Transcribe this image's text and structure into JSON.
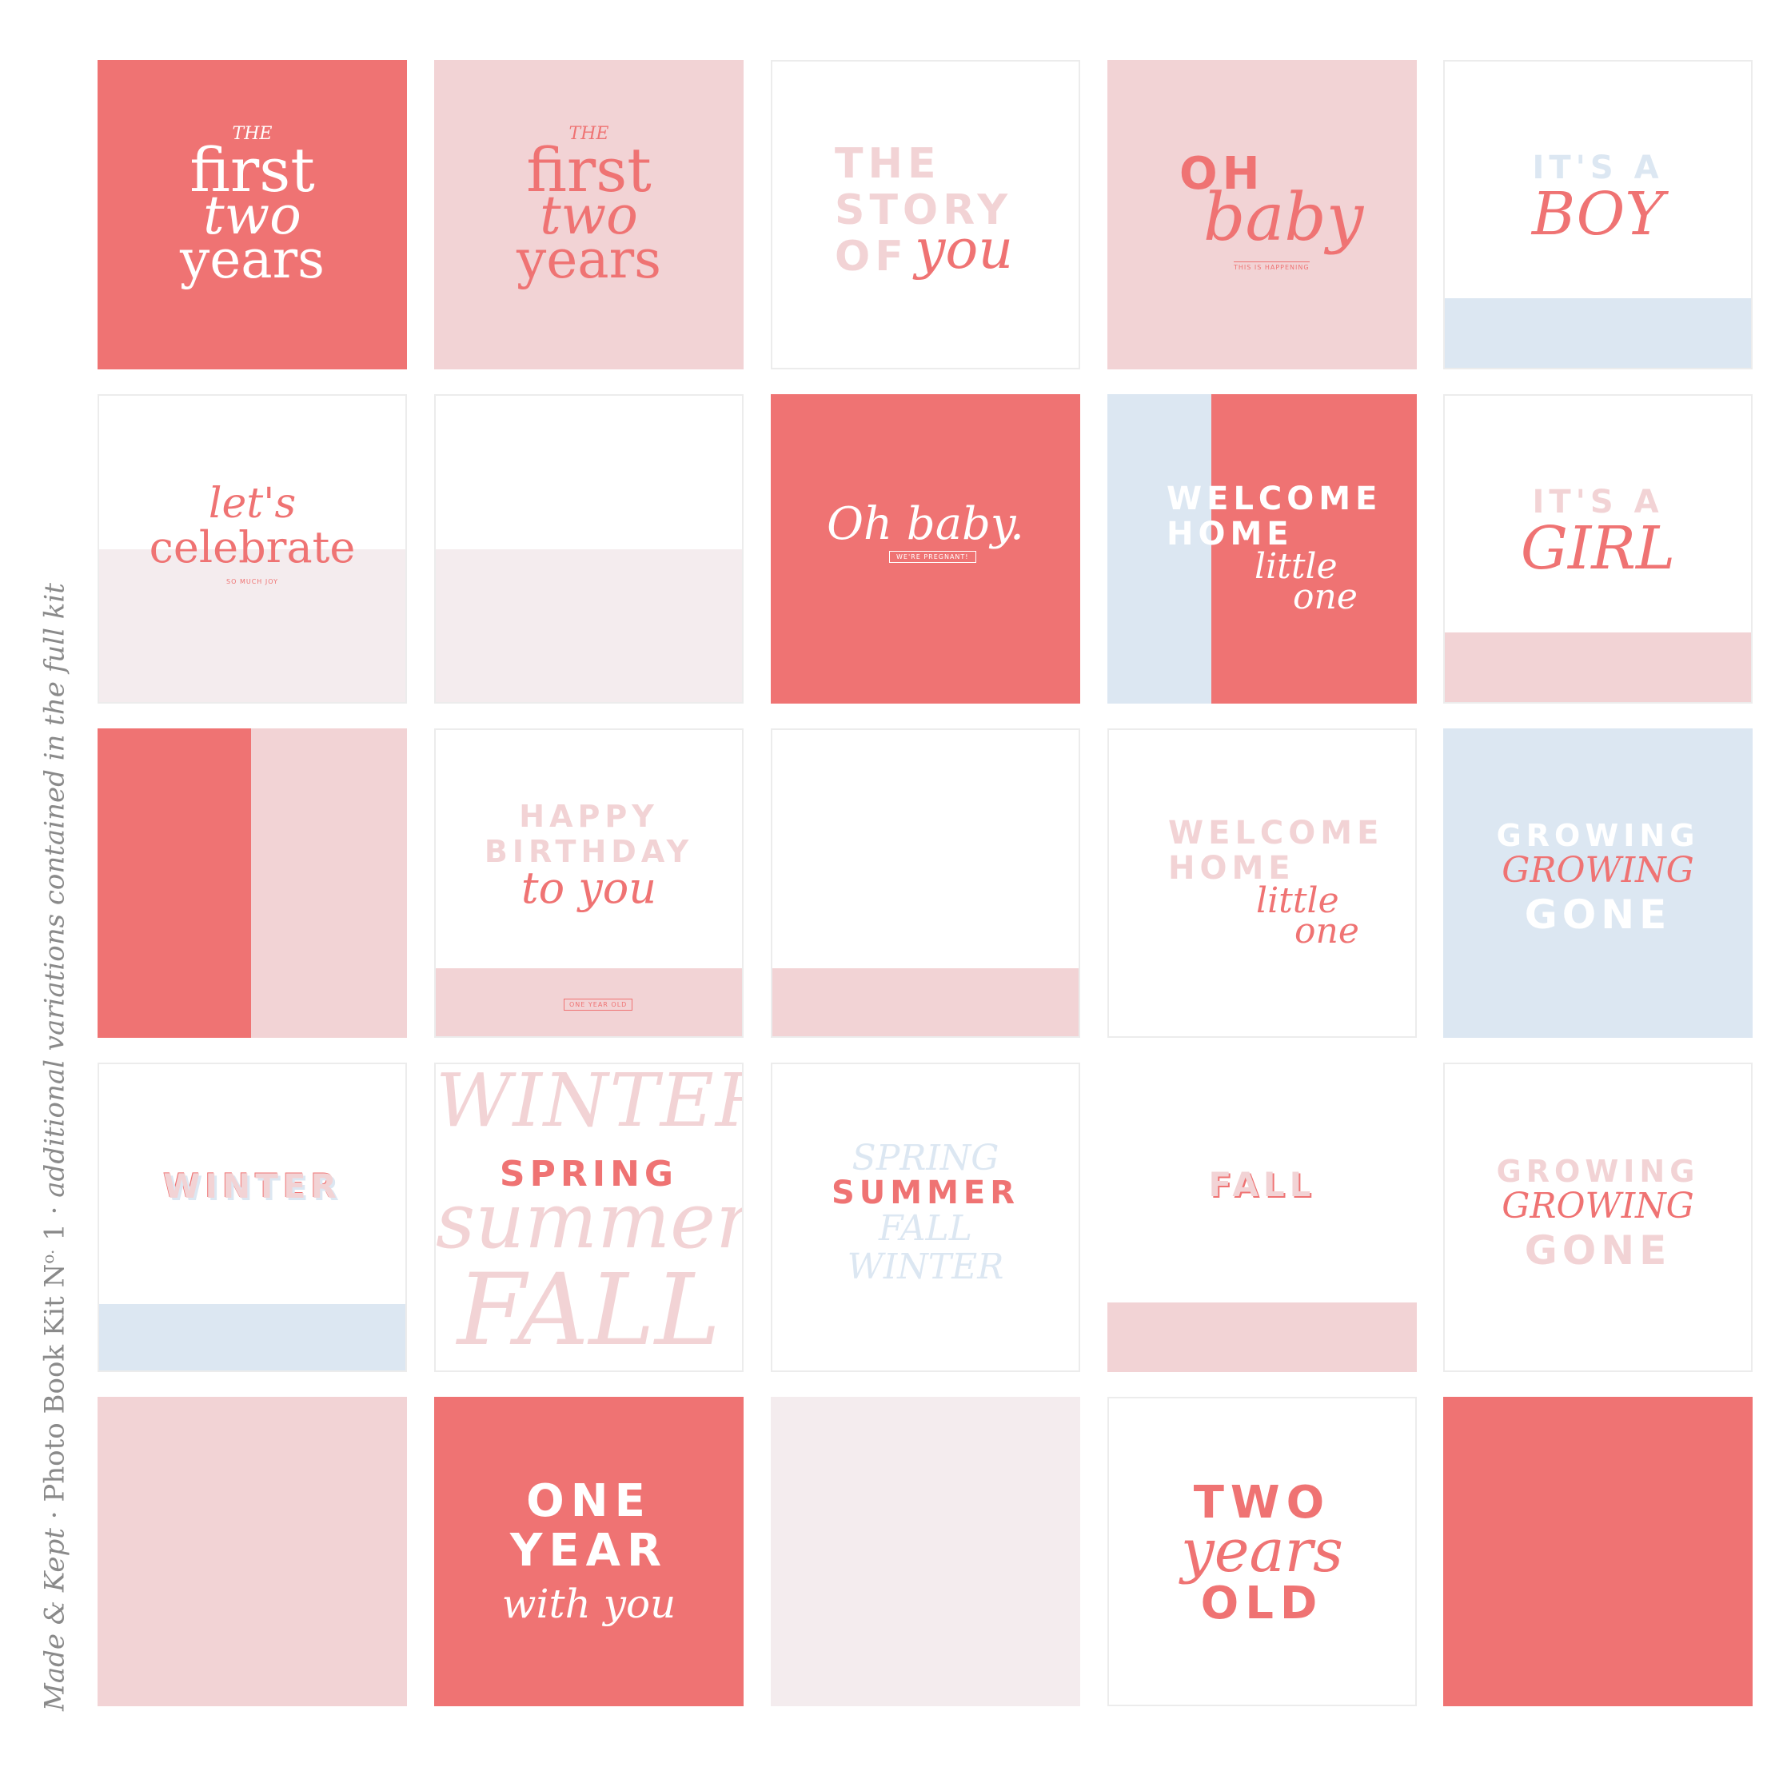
{
  "side_caption": {
    "brand": "Made & Kept",
    "sep1": " · ",
    "product": "Photo Book Kit N",
    "sup": "o.",
    "num": " 1",
    "sep2": " · ",
    "note": "additional variations contained in the full kit"
  },
  "colors": {
    "coral": "#ef7373",
    "pink": "#f2d3d5",
    "blue": "#dce7f2",
    "light": "#f4ecee",
    "white": "#ffffff"
  },
  "cards": {
    "c1": {
      "l1": "THE",
      "l2": "first",
      "l3": "two",
      "l4": "years"
    },
    "c2": {
      "l1": "THE",
      "l2": "first",
      "l3": "two",
      "l4": "years"
    },
    "c3": {
      "l1": "THE",
      "l2": "STORY",
      "l3": "OF",
      "l4": "you"
    },
    "c4": {
      "l1": "OH",
      "l2": "baby",
      "l3": "THIS IS HAPPENING"
    },
    "c5": {
      "l1": "IT'S A",
      "l2": "BOY"
    },
    "c6": {
      "l1": "let's",
      "l2": "celebrate",
      "l3": "SO MUCH JOY"
    },
    "c8": {
      "l1": "Oh baby.",
      "l2": "WE'RE PREGNANT!"
    },
    "c9": {
      "l1": "WELCOME",
      "l2": "HOME",
      "l3": "little",
      "l4": "one"
    },
    "c10": {
      "l1": "IT'S A",
      "l2": "GIRL"
    },
    "c12": {
      "l1": "HAPPY",
      "l2": "BIRTHDAY",
      "l3": "to you",
      "l4": "ONE YEAR OLD"
    },
    "c14": {
      "l1": "WELCOME",
      "l2": "HOME",
      "l3": "little",
      "l4": "one"
    },
    "c15": {
      "l1": "GROWING",
      "l2": "GROWING",
      "l3": "GONE"
    },
    "c16": {
      "l1": "WINTER"
    },
    "c17": {
      "l1": "WINTER",
      "l2": "SPRING",
      "l3": "summer",
      "l4": "FALL"
    },
    "c18": {
      "l1": "SPRING",
      "l2": "SUMMER",
      "l3": "FALL",
      "l4": "WINTER"
    },
    "c19": {
      "l1": "FALL"
    },
    "c20": {
      "l1": "GROWING",
      "l2": "GROWING",
      "l3": "GONE"
    },
    "c22": {
      "l1": "ONE",
      "l2": "YEAR",
      "l3": "with you"
    },
    "c24": {
      "l1": "TWO",
      "l2": "years",
      "l3": "OLD"
    }
  }
}
